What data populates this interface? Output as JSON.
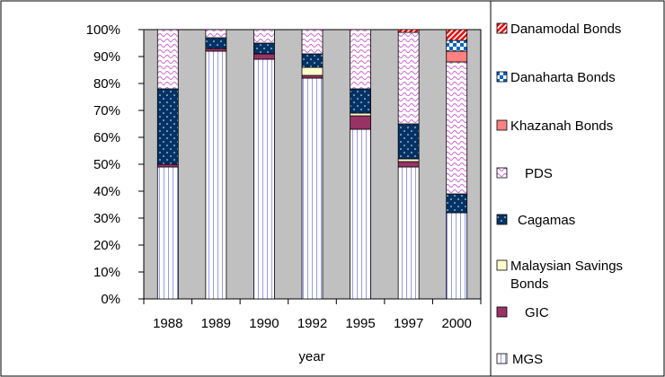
{
  "chart_data": {
    "type": "bar",
    "stacked": true,
    "normalized": true,
    "categories": [
      "1988",
      "1989",
      "1990",
      "1992",
      "1995",
      "1997",
      "2000"
    ],
    "xlabel": "year",
    "ylabel": "",
    "ylim": [
      0,
      100
    ],
    "yticks": [
      "0%",
      "10%",
      "20%",
      "30%",
      "40%",
      "50%",
      "60%",
      "70%",
      "80%",
      "90%",
      "100%"
    ],
    "legend_position": "right",
    "legend_order": [
      "Danamodal Bonds",
      "Danaharta Bonds",
      "Khazanah Bonds",
      "PDS",
      "Cagamas",
      "Malaysian Savings Bonds",
      "GIC",
      "MGS"
    ],
    "series": [
      {
        "name": "MGS",
        "pattern": "vertical-lines",
        "color": "#9999ff",
        "values": [
          49,
          92,
          89,
          82,
          63,
          49,
          32
        ]
      },
      {
        "name": "GIC",
        "pattern": "solid",
        "color": "#993366",
        "values": [
          1,
          1,
          2,
          1,
          5,
          2,
          0
        ]
      },
      {
        "name": "Malaysian Savings Bonds",
        "pattern": "solid",
        "color": "#ffffcc",
        "values": [
          0,
          0,
          0,
          3,
          1,
          1,
          0
        ]
      },
      {
        "name": "Cagamas",
        "pattern": "dots",
        "color": "#003366",
        "values": [
          28,
          4,
          4,
          5,
          9,
          13,
          7
        ]
      },
      {
        "name": "PDS",
        "pattern": "waves",
        "color": "#cc99ff",
        "values": [
          22,
          3,
          5,
          9,
          22,
          34,
          49
        ]
      },
      {
        "name": "Khazanah Bonds",
        "pattern": "solid",
        "color": "#ff8080",
        "values": [
          0,
          0,
          0,
          0,
          0,
          0,
          4
        ]
      },
      {
        "name": "Danaharta Bonds",
        "pattern": "checker",
        "color": "#0066cc",
        "values": [
          0,
          0,
          0,
          0,
          0,
          0,
          4
        ]
      },
      {
        "name": "Danamodal Bonds",
        "pattern": "diagonal",
        "color": "#ff0000",
        "values": [
          0,
          0,
          0,
          0,
          0,
          1,
          4
        ]
      }
    ],
    "colors": {
      "plot_background": "#c0c0c0",
      "axis": "#000000"
    }
  }
}
